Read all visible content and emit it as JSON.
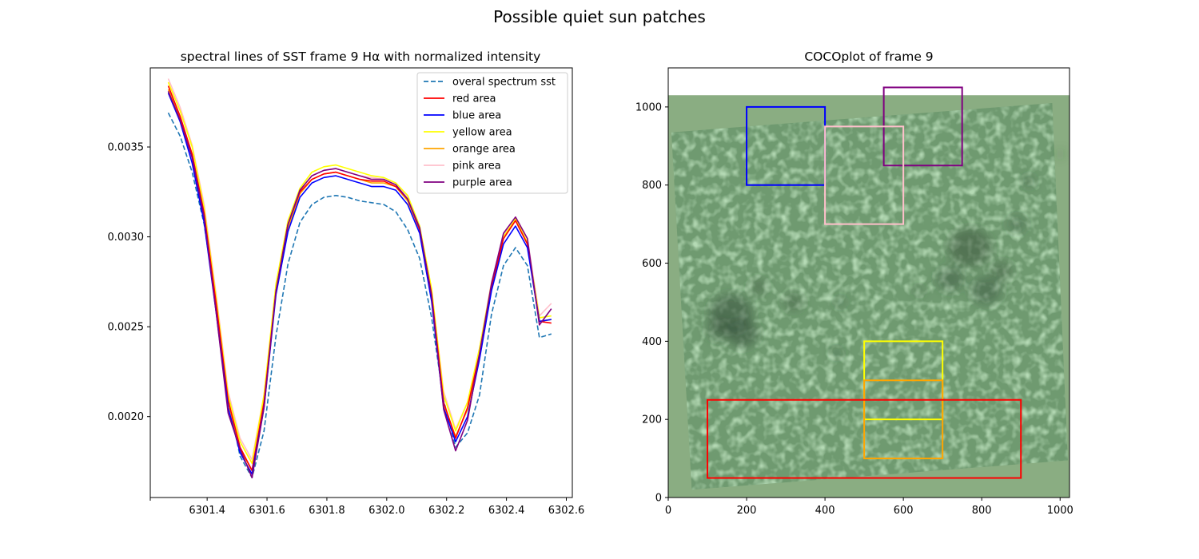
{
  "figure": {
    "suptitle": "Possible quiet sun patches"
  },
  "chart_data": [
    {
      "type": "line",
      "title": "spectral lines of SST frame 9 Hα with normalized intensity",
      "xlabel": "",
      "ylabel": "",
      "xlim": [
        6301.21,
        6302.62
      ],
      "ylim": [
        0.00155,
        0.00394
      ],
      "xticks": [
        6301.4,
        6301.6,
        6301.8,
        6302.0,
        6302.2,
        6302.4,
        6302.6
      ],
      "xtick_labels": [
        "6301.4",
        "6301.6",
        "6301.8",
        "6302.0",
        "6302.2",
        "6302.4",
        "6302.6"
      ],
      "yticks": [
        0.002,
        0.0025,
        0.003,
        0.0035
      ],
      "ytick_labels": [
        "0.0020",
        "0.0025",
        "0.0030",
        "0.0035"
      ],
      "grid": false,
      "legend": "top-right",
      "x": [
        6301.27,
        6301.31,
        6301.35,
        6301.39,
        6301.43,
        6301.47,
        6301.51,
        6301.55,
        6301.59,
        6301.63,
        6301.67,
        6301.71,
        6301.75,
        6301.79,
        6301.83,
        6301.87,
        6301.91,
        6301.95,
        6301.99,
        6302.03,
        6302.07,
        6302.11,
        6302.15,
        6302.19,
        6302.23,
        6302.27,
        6302.31,
        6302.35,
        6302.39,
        6302.43,
        6302.47,
        6302.51,
        6302.55
      ],
      "series": [
        {
          "name": "overal spectrum sst",
          "color": "#1f77b4",
          "dash": true,
          "values": [
            0.00369,
            0.00356,
            0.00336,
            0.00307,
            0.00262,
            0.0021,
            0.00178,
            0.00166,
            0.00192,
            0.00245,
            0.00285,
            0.00308,
            0.00318,
            0.00322,
            0.00323,
            0.00322,
            0.0032,
            0.00319,
            0.00318,
            0.00314,
            0.00304,
            0.00288,
            0.00255,
            0.00209,
            0.00183,
            0.00191,
            0.00212,
            0.00257,
            0.00284,
            0.00294,
            0.00284,
            0.00244,
            0.00246
          ]
        },
        {
          "name": "red area",
          "color": "#ff0000",
          "dash": false,
          "values": [
            0.00384,
            0.00367,
            0.00346,
            0.00313,
            0.00263,
            0.00209,
            0.00183,
            0.0017,
            0.00208,
            0.0027,
            0.00307,
            0.00325,
            0.00332,
            0.00335,
            0.00336,
            0.00334,
            0.00332,
            0.00331,
            0.00331,
            0.00328,
            0.00321,
            0.00304,
            0.00268,
            0.00208,
            0.00188,
            0.00205,
            0.00235,
            0.00272,
            0.00299,
            0.00309,
            0.00296,
            0.00253,
            0.00252
          ]
        },
        {
          "name": "blue area",
          "color": "#0000ff",
          "dash": false,
          "values": [
            0.0038,
            0.00364,
            0.00341,
            0.00308,
            0.00258,
            0.00205,
            0.0018,
            0.00168,
            0.00205,
            0.00268,
            0.00303,
            0.00322,
            0.0033,
            0.00333,
            0.00334,
            0.00332,
            0.0033,
            0.00328,
            0.00328,
            0.00326,
            0.00318,
            0.00302,
            0.00264,
            0.00205,
            0.00186,
            0.002,
            0.00232,
            0.0027,
            0.00296,
            0.00306,
            0.00294,
            0.00253,
            0.00254
          ]
        },
        {
          "name": "yellow area",
          "color": "#ffff00",
          "dash": false,
          "values": [
            0.00386,
            0.0037,
            0.0035,
            0.00316,
            0.00266,
            0.00212,
            0.00186,
            0.00174,
            0.00212,
            0.00274,
            0.00309,
            0.00327,
            0.00336,
            0.00339,
            0.0034,
            0.00338,
            0.00336,
            0.00334,
            0.00333,
            0.0033,
            0.00323,
            0.00306,
            0.00271,
            0.00212,
            0.00192,
            0.00208,
            0.00238,
            0.00274,
            0.003,
            0.0031,
            0.00297,
            0.00255,
            0.00256
          ]
        },
        {
          "name": "orange area",
          "color": "#ffa500",
          "dash": false,
          "values": [
            0.00382,
            0.00366,
            0.00346,
            0.00312,
            0.00262,
            0.00208,
            0.00182,
            0.0017,
            0.00208,
            0.0027,
            0.00305,
            0.00324,
            0.00332,
            0.00335,
            0.00336,
            0.00334,
            0.00332,
            0.0033,
            0.0033,
            0.00328,
            0.0032,
            0.00304,
            0.00267,
            0.00207,
            0.00189,
            0.00204,
            0.00234,
            0.00272,
            0.00299,
            0.0031,
            0.00296,
            0.00253,
            0.00254
          ]
        },
        {
          "name": "pink area",
          "color": "#ffc0cb",
          "dash": false,
          "values": [
            0.00388,
            0.00372,
            0.00351,
            0.00318,
            0.00268,
            0.00214,
            0.00188,
            0.00176,
            0.00212,
            0.00272,
            0.00308,
            0.00326,
            0.00334,
            0.00337,
            0.00338,
            0.00336,
            0.00334,
            0.00333,
            0.00332,
            0.00329,
            0.00322,
            0.00306,
            0.0027,
            0.00214,
            0.00193,
            0.00208,
            0.00238,
            0.00275,
            0.00301,
            0.00311,
            0.00299,
            0.00256,
            0.00263
          ]
        },
        {
          "name": "purple area",
          "color": "#800080",
          "dash": false,
          "values": [
            0.00381,
            0.00365,
            0.00344,
            0.00311,
            0.00258,
            0.00202,
            0.00182,
            0.00166,
            0.00205,
            0.0027,
            0.00307,
            0.00326,
            0.00334,
            0.00337,
            0.00338,
            0.00336,
            0.00334,
            0.00332,
            0.00332,
            0.00329,
            0.00321,
            0.00305,
            0.00267,
            0.00204,
            0.00181,
            0.00198,
            0.00235,
            0.00274,
            0.00302,
            0.00311,
            0.00299,
            0.00251,
            0.0026
          ]
        }
      ]
    },
    {
      "type": "image",
      "title": "COCOplot of frame 9",
      "xlabel": "",
      "ylabel": "",
      "xlim": [
        0,
        1024
      ],
      "ylim": [
        0,
        1100
      ],
      "xticks": [
        0,
        200,
        400,
        600,
        800,
        1000
      ],
      "xtick_labels": [
        "0",
        "200",
        "400",
        "600",
        "800",
        "1000"
      ],
      "yticks": [
        0,
        200,
        400,
        600,
        800,
        1000
      ],
      "ytick_labels": [
        "0",
        "200",
        "400",
        "600",
        "800",
        "1000"
      ],
      "image_extent": [
        0,
        1024,
        0,
        1030
      ],
      "image_colors": {
        "background": "#8aad82",
        "granulation": "#94c991",
        "intergranular": "#6f9a70",
        "dark": "#35503a"
      },
      "regions": [
        {
          "name": "blue",
          "color": "#0000ff",
          "x": [
            200,
            400
          ],
          "y": [
            800,
            1000
          ]
        },
        {
          "name": "purple",
          "color": "#800080",
          "x": [
            550,
            750
          ],
          "y": [
            850,
            1050
          ]
        },
        {
          "name": "pink",
          "color": "#ffc0cb",
          "x": [
            400,
            600
          ],
          "y": [
            700,
            950
          ]
        },
        {
          "name": "yellow",
          "color": "#ffff00",
          "x": [
            500,
            700
          ],
          "y": [
            200,
            400
          ]
        },
        {
          "name": "orange",
          "color": "#ffa500",
          "x": [
            500,
            700
          ],
          "y": [
            100,
            300
          ]
        },
        {
          "name": "red",
          "color": "#ff0000",
          "x": [
            100,
            900
          ],
          "y": [
            50,
            250
          ]
        }
      ]
    }
  ]
}
